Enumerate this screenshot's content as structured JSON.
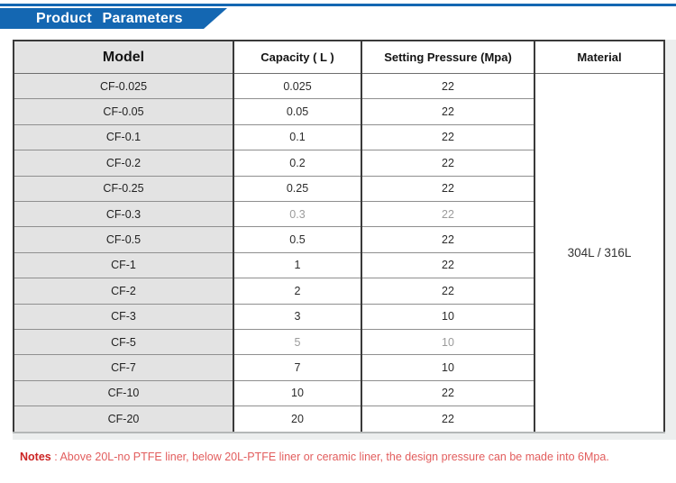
{
  "banner": {
    "title": "Product Parameters",
    "color": "#1467b2"
  },
  "table": {
    "headers": [
      "Model",
      "Capacity ( L )",
      "Setting Pressure (Mpa)",
      "Material"
    ],
    "material": "304L / 316L",
    "rows": [
      {
        "model": "CF-0.025",
        "capacity": "0.025",
        "pressure": "22",
        "muted": false
      },
      {
        "model": "CF-0.05",
        "capacity": "0.05",
        "pressure": "22",
        "muted": false
      },
      {
        "model": "CF-0.1",
        "capacity": "0.1",
        "pressure": "22",
        "muted": false
      },
      {
        "model": "CF-0.2",
        "capacity": "0.2",
        "pressure": "22",
        "muted": false
      },
      {
        "model": "CF-0.25",
        "capacity": "0.25",
        "pressure": "22",
        "muted": false
      },
      {
        "model": "CF-0.3",
        "capacity": "0.3",
        "pressure": "22",
        "muted": true
      },
      {
        "model": "CF-0.5",
        "capacity": "0.5",
        "pressure": "22",
        "muted": false
      },
      {
        "model": "CF-1",
        "capacity": "1",
        "pressure": "22",
        "muted": false
      },
      {
        "model": "CF-2",
        "capacity": "2",
        "pressure": "22",
        "muted": false
      },
      {
        "model": "CF-3",
        "capacity": "3",
        "pressure": "10",
        "muted": false
      },
      {
        "model": "CF-5",
        "capacity": "5",
        "pressure": "10",
        "muted": true
      },
      {
        "model": "CF-7",
        "capacity": "7",
        "pressure": "10",
        "muted": false
      },
      {
        "model": "CF-10",
        "capacity": "10",
        "pressure": "22",
        "muted": false
      },
      {
        "model": "CF-20",
        "capacity": "20",
        "pressure": "22",
        "muted": false
      }
    ]
  },
  "notes": {
    "label": "Notes",
    "text": " : Above 20L-no PTFE liner, below 20L-PTFE liner or ceramic liner, the design pressure can be made into 6Mpa.",
    "label_color": "#cc2424",
    "text_color": "#e25d5d"
  }
}
